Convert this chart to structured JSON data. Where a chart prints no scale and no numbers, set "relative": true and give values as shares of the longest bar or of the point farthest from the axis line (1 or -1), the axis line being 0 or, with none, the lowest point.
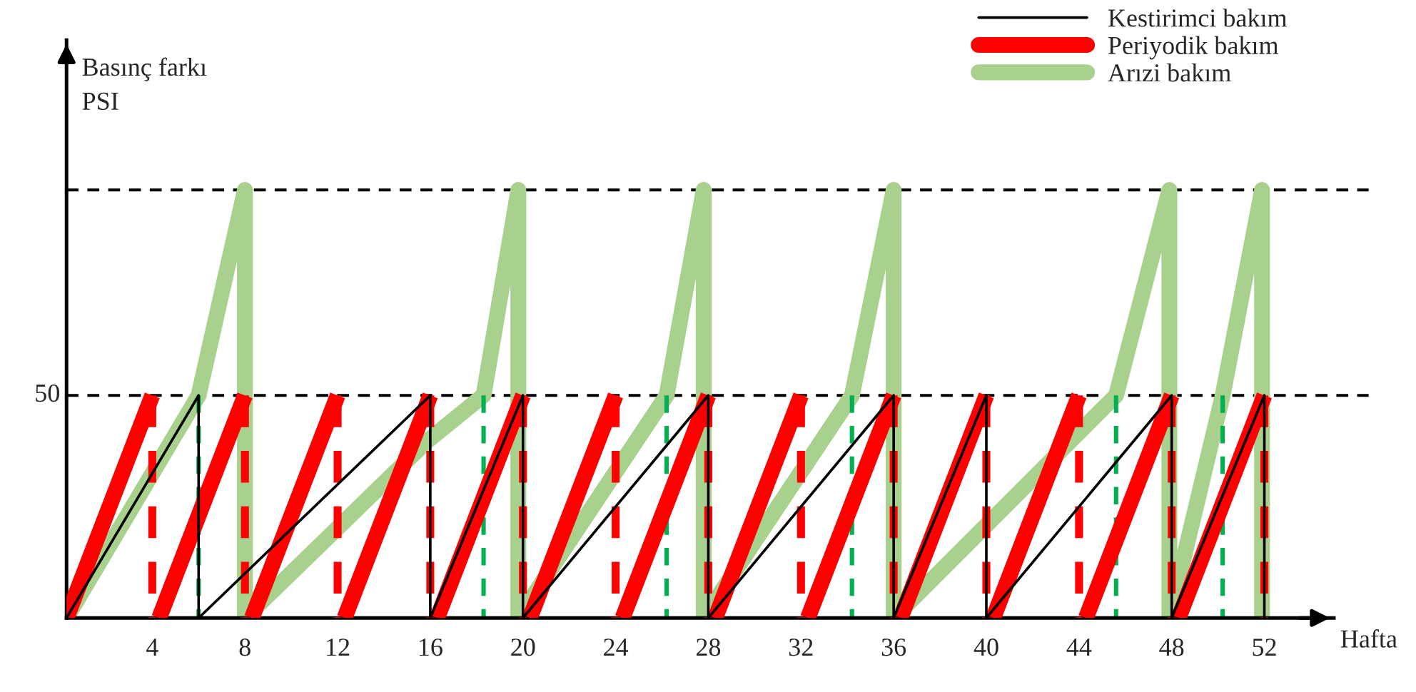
{
  "chart_data": {
    "type": "line",
    "relative": true,
    "ylabel": "Basınç farkı\nPSI",
    "xlabel": "Hafta",
    "xlim": [
      0.3,
      55
    ],
    "xticks": [
      4,
      8,
      12,
      16,
      20,
      24,
      28,
      32,
      36,
      40,
      44,
      48,
      52
    ],
    "grid": false,
    "legend": "top right",
    "annotations": [
      "50"
    ],
    "ref_lines": [
      {
        "axis": "y",
        "value": 0.52,
        "color": "#000000",
        "line_style": "dashed"
      },
      {
        "axis": "y",
        "value": 1.0,
        "color": "#000000",
        "line_style": "dashed"
      }
    ],
    "series": [
      {
        "name": "Kestirimci bakım",
        "color": "#000000",
        "line_style": "solid",
        "x": [
          0.3,
          6,
          6,
          16,
          16,
          20,
          20,
          28,
          28,
          36,
          36,
          40,
          40,
          48,
          48,
          52,
          52
        ],
        "values": [
          0,
          0.52,
          0,
          0.52,
          0,
          0.52,
          0,
          0.52,
          0,
          0.52,
          0,
          0.52,
          0,
          0.52,
          0,
          0.52,
          0
        ]
      },
      {
        "name": "Periyodik bakım",
        "color": "#ff0000",
        "line_style": "solid",
        "x": [
          0.3,
          4,
          null,
          4.3,
          8,
          null,
          8.3,
          12,
          null,
          12.3,
          16,
          null,
          16.3,
          20,
          null,
          20.3,
          24,
          null,
          24.3,
          28,
          null,
          28.3,
          32,
          null,
          32.3,
          36,
          null,
          36.3,
          40,
          null,
          40.3,
          44,
          null,
          44.3,
          48,
          null,
          48.3,
          52
        ],
        "values": [
          0,
          0.52,
          null,
          0,
          0.52,
          null,
          0,
          0.52,
          null,
          0,
          0.52,
          null,
          0,
          0.52,
          null,
          0,
          0.52,
          null,
          0,
          0.52,
          null,
          0,
          0.52,
          null,
          0,
          0.52,
          null,
          0,
          0.52,
          null,
          0,
          0.52,
          null,
          0,
          0.52,
          null,
          0,
          0.52
        ]
      },
      {
        "name": "Arızi bakım",
        "color": "#a9d18e",
        "line_style": "solid",
        "x": [
          0.3,
          6,
          8,
          8,
          15.8,
          18.3,
          19.8,
          19.8,
          26.2,
          27.8,
          27.8,
          34.2,
          36,
          36,
          45.6,
          47.9,
          47.9,
          50.2,
          51.9,
          51.9
        ],
        "values": [
          0,
          0.52,
          1,
          0,
          0.41,
          0.52,
          1,
          0,
          0.52,
          1,
          0,
          0.52,
          1,
          0,
          0.52,
          1,
          0,
          0.52,
          1,
          0
        ]
      },
      {
        "color": "#ff0000",
        "line_style": "dashed",
        "x": [
          4,
          4,
          null,
          8,
          8,
          null,
          12,
          12,
          null,
          16,
          16,
          null,
          20,
          20,
          null,
          24,
          24,
          null,
          28,
          28,
          null,
          32,
          32,
          null,
          36,
          36,
          null,
          40,
          40,
          null,
          44,
          44,
          null,
          48,
          48,
          null,
          52,
          52
        ],
        "values": [
          0.52,
          0,
          null,
          0.52,
          0,
          null,
          0.52,
          0,
          null,
          0.52,
          0,
          null,
          0.52,
          0,
          null,
          0.52,
          0,
          null,
          0.52,
          0,
          null,
          0.52,
          0,
          null,
          0.52,
          0,
          null,
          0.52,
          0,
          null,
          0.52,
          0,
          null,
          0.52,
          0,
          null,
          0.52,
          0
        ]
      },
      {
        "color": "#00b050",
        "line_style": "dashed",
        "x": [
          6,
          6,
          null,
          18.3,
          18.3,
          null,
          26.2,
          26.2,
          null,
          34.2,
          34.2,
          null,
          45.6,
          45.6,
          null,
          50.2,
          50.2
        ],
        "values": [
          0.52,
          0,
          null,
          0.52,
          0,
          null,
          0.52,
          0,
          null,
          0.52,
          0,
          null,
          0.52,
          0,
          null,
          0.52,
          0
        ]
      }
    ]
  }
}
